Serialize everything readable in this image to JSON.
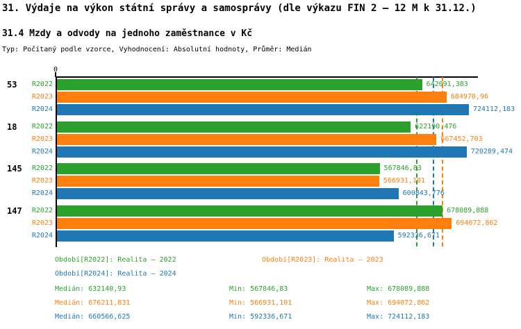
{
  "header": {
    "title": "31. Výdaje na výkon státní správy a samosprávy (dle výkazu FIN 2 – 12 M k 31.12.)",
    "subtitle": "31.4 Mzdy a odvody na jednoho zaměstnance v Kč",
    "meta": "Typ: Počítaný podle vzorce, Vyhodnocení: Absolutní hodnoty, Průměr: Medián"
  },
  "colors": {
    "r2022_green": "#2ca02c",
    "r2023_orange": "#ff7f0e",
    "r2024_blue": "#1f77b4",
    "axis_black": "#000000"
  },
  "chart_data": {
    "type": "bar",
    "orientation": "horizontal",
    "title": "31.4 Mzdy a odvody na jednoho zaměstnance v Kč",
    "xlabel": "",
    "ylabel": "",
    "xlim": [
      0,
      740000
    ],
    "origin_label": "0",
    "grid": false,
    "legend_position": "bottom",
    "categories": [
      "53",
      "18",
      "145",
      "147"
    ],
    "series": [
      {
        "name": "R2022",
        "color": "#2ca02c",
        "values": [
          642091.383,
          622190.476,
          567846.83,
          678089.888
        ],
        "value_labels": [
          "642091,383",
          "622190,476",
          "567846,83",
          "678089,888"
        ],
        "median": 632140.93
      },
      {
        "name": "R2023",
        "color": "#ff7f0e",
        "values": [
          684970.96,
          667452.703,
          566931.101,
          694072.862
        ],
        "value_labels": [
          "684970,96",
          "667452,703",
          "566931,101",
          "694072,862"
        ],
        "median": 676211.831
      },
      {
        "name": "R2024",
        "color": "#1f77b4",
        "values": [
          724112.183,
          720289.474,
          600843.776,
          592336.671
        ],
        "value_labels": [
          "724112,183",
          "720289,474",
          "600843,776",
          "592336,671"
        ],
        "median": 660566.625
      }
    ],
    "median_lines_shown": true
  },
  "legend": {
    "r2022": "Období[R2022]: Realita – 2022",
    "r2023": "Období[R2023]: Realita – 2023",
    "r2024": "Období[R2024]: Realita – 2024"
  },
  "stats": [
    {
      "median": "Medián: 632140,93",
      "min": "Min: 567846,83",
      "max": "Max: 678089,888",
      "color": "#2ca02c"
    },
    {
      "median": "Medián: 676211,831",
      "min": "Min: 566931,101",
      "max": "Max: 694072,862",
      "color": "#ff7f0e"
    },
    {
      "median": "Medián: 660566,625",
      "min": "Min: 592336,671",
      "max": "Max: 724112,183",
      "color": "#1f77b4"
    }
  ]
}
